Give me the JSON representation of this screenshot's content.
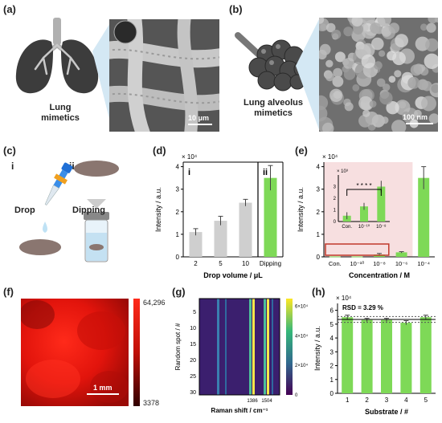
{
  "panels": {
    "a": {
      "label": "(a)",
      "caption_line1": "Lung",
      "caption_line2": "mimetics",
      "scale": "10 μm"
    },
    "b": {
      "label": "(b)",
      "caption_line1": "Lung alveolus",
      "caption_line2": "mimetics",
      "scale": "100 nm"
    },
    "c": {
      "label": "(c)",
      "step_i": "i",
      "step_ii": "ii",
      "drop_label": "Drop",
      "dipping_label": "Dipping"
    },
    "d": {
      "label": "(d)"
    },
    "e": {
      "label": "(e)"
    },
    "f": {
      "label": "(f)",
      "scale": "1 mm",
      "cb_max": "64,296",
      "cb_min": "3378"
    },
    "g": {
      "label": "(g)"
    },
    "h": {
      "label": "(h)",
      "rsd": "RSD = 3.29 %"
    }
  },
  "colors": {
    "green": "#7ed957",
    "gray": "#cfcfcf",
    "pink": "#f7dfe0",
    "red": "#c0392b"
  },
  "chart_data": [
    {
      "id": "d",
      "type": "bar",
      "categories": [
        "2",
        "5",
        "10",
        "Dipping"
      ],
      "values": [
        1.1,
        1.6,
        2.4,
        3.5
      ],
      "errors": [
        0.15,
        0.2,
        0.15,
        0.55
      ],
      "colors": [
        "#cfcfcf",
        "#cfcfcf",
        "#cfcfcf",
        "#7ed957"
      ],
      "multiplier": "× 10⁴",
      "xlabel": "Drop volume / μL",
      "ylabel": "Intensity / a.u.",
      "ylim": [
        0,
        4.2
      ],
      "ticks": [
        "0",
        "1",
        "2",
        "3",
        "4"
      ],
      "region_labels": [
        "i",
        "ii"
      ]
    },
    {
      "id": "e",
      "type": "bar",
      "categories": [
        "Con.",
        "10⁻¹⁰",
        "10⁻⁸",
        "10⁻⁶",
        "10⁻⁴"
      ],
      "values": [
        0.02,
        0.02,
        0.1,
        0.2,
        3.5
      ],
      "errors": [
        0,
        0,
        0.05,
        0.03,
        0.5
      ],
      "multiplier": "× 10⁴",
      "xlabel": "Concentration / M",
      "ylabel": "Intensity / a.u.",
      "ylim": [
        0,
        4.2
      ],
      "ticks": [
        "0",
        "1",
        "2",
        "3",
        "4"
      ],
      "inset": {
        "multiplier": "× 10³",
        "categories": [
          "Con.",
          "10⁻¹⁰",
          "10⁻⁸"
        ],
        "values": [
          0.5,
          1.3,
          3.0
        ],
        "errors": [
          0.3,
          0.3,
          0.5
        ],
        "ticks": [
          "0",
          "1",
          "2",
          "3"
        ],
        "ylim": [
          0,
          4
        ],
        "significance": "* * * *"
      }
    },
    {
      "id": "g",
      "type": "heatmap",
      "xlabel": "Raman shift / cm⁻¹",
      "ylabel": "Random spot / #",
      "yticks": [
        "5",
        "10",
        "15",
        "20",
        "25",
        "30"
      ],
      "xticks": [
        "1386",
        "1504"
      ],
      "colorbar_ticks": [
        "0",
        "2×10⁴",
        "4×10⁴",
        "6×10⁴"
      ]
    },
    {
      "id": "h",
      "type": "bar",
      "categories": [
        "1",
        "2",
        "3",
        "4",
        "5"
      ],
      "values": [
        5.5,
        5.3,
        5.3,
        5.1,
        5.5
      ],
      "errors": [
        0.15,
        0.12,
        0.12,
        0.15,
        0.15
      ],
      "multiplier": "× 10⁴",
      "xlabel": "Substrate / #",
      "ylabel": "Intensity / a.u.",
      "ylim": [
        0,
        6.5
      ],
      "ticks": [
        "0",
        "1",
        "2",
        "3",
        "4",
        "5",
        "6"
      ]
    }
  ]
}
